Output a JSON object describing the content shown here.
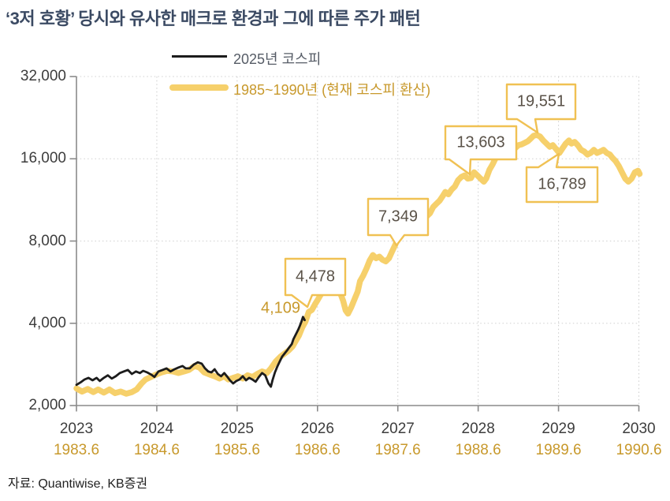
{
  "title": "‘3저 호황’ 당시와 유사한 매크로 환경과 그에 따른 주가 패턴",
  "source": "자료: Quantiwise, KB증권",
  "legend": [
    {
      "label": "2025년 코스피",
      "color": "#1C1C1C"
    },
    {
      "label": "1985~1990년 (현재 코스피 환산)",
      "color": "#F6D06B"
    }
  ],
  "colors": {
    "title": "#3B4A63",
    "black_line": "#1C1C1C",
    "gold_line": "#F6D06B",
    "callout_border": "#F0C153",
    "gold_text": "#C8992C",
    "axis_text": "#3D3D3D",
    "axis_line": "#8A8A8A",
    "gridline": "#D0D0D0"
  },
  "chart_data": {
    "type": "line",
    "title": "‘3저 호황’ 당시와 유사한 매크로 환경과 그에 따른 주가 패턴",
    "y_axis": {
      "scale": "log2",
      "range": [
        2000,
        32000
      ],
      "tick_values": [
        32000,
        16000,
        8000,
        4000,
        2000
      ],
      "tick_labels": [
        "32,000",
        "16,000",
        "8,000",
        "4,000",
        "2,000"
      ],
      "grid_values": [
        32000,
        16000,
        8000,
        4000
      ]
    },
    "x_axis_top": {
      "range": [
        2023,
        2030
      ],
      "tick_values": [
        2023,
        2024,
        2025,
        2026,
        2027,
        2028,
        2029,
        2030
      ],
      "tick_labels": [
        "2023",
        "2024",
        "2025",
        "2026",
        "2027",
        "2028",
        "2029",
        "2030"
      ]
    },
    "x_axis_bottom": {
      "range": [
        1983.6,
        1990.6
      ],
      "tick_labels": [
        "1983.6",
        "1984.6",
        "1985.6",
        "1986.6",
        "1987.6",
        "1988.6",
        "1989.6",
        "1990.6"
      ]
    },
    "grid": {
      "horizontal": true,
      "vertical": true,
      "style": "dotted"
    },
    "legend_position": "top-center",
    "series": [
      {
        "name": "1985~1990년 (현재 코스피 환산)",
        "color": "#F6D06B",
        "axis": "bottom",
        "points": [
          [
            1983.6,
            2310
          ],
          [
            1983.67,
            2250
          ],
          [
            1983.74,
            2300
          ],
          [
            1983.81,
            2240
          ],
          [
            1983.87,
            2290
          ],
          [
            1983.94,
            2230
          ],
          [
            1984.01,
            2290
          ],
          [
            1984.08,
            2220
          ],
          [
            1984.15,
            2250
          ],
          [
            1984.22,
            2210
          ],
          [
            1984.29,
            2240
          ],
          [
            1984.35,
            2290
          ],
          [
            1984.41,
            2410
          ],
          [
            1984.46,
            2490
          ],
          [
            1984.52,
            2540
          ],
          [
            1984.59,
            2595
          ],
          [
            1984.66,
            2645
          ],
          [
            1984.73,
            2680
          ],
          [
            1984.8,
            2665
          ],
          [
            1984.87,
            2630
          ],
          [
            1984.94,
            2665
          ],
          [
            1985.0,
            2700
          ],
          [
            1985.07,
            2790
          ],
          [
            1985.13,
            2755
          ],
          [
            1985.19,
            2645
          ],
          [
            1985.26,
            2595
          ],
          [
            1985.32,
            2560
          ],
          [
            1985.38,
            2510
          ],
          [
            1985.44,
            2560
          ],
          [
            1985.49,
            2490
          ],
          [
            1985.55,
            2525
          ],
          [
            1985.61,
            2560
          ],
          [
            1985.67,
            2510
          ],
          [
            1985.73,
            2580
          ],
          [
            1985.79,
            2545
          ],
          [
            1985.85,
            2610
          ],
          [
            1985.91,
            2665
          ],
          [
            1985.97,
            2630
          ],
          [
            1986.02,
            2735
          ],
          [
            1986.08,
            2900
          ],
          [
            1986.14,
            3020
          ],
          [
            1986.19,
            3100
          ],
          [
            1986.24,
            3180
          ],
          [
            1986.29,
            3290
          ],
          [
            1986.33,
            3450
          ],
          [
            1986.37,
            3610
          ],
          [
            1986.41,
            3860
          ],
          [
            1986.45,
            4055
          ],
          [
            1986.49,
            4400
          ],
          [
            1986.53,
            4478
          ],
          [
            1986.57,
            4700
          ],
          [
            1986.6,
            4860
          ],
          [
            1986.64,
            5090
          ],
          [
            1986.68,
            5300
          ],
          [
            1986.72,
            5370
          ],
          [
            1986.76,
            5225
          ],
          [
            1986.8,
            5300
          ],
          [
            1986.84,
            5370
          ],
          [
            1986.88,
            5190
          ],
          [
            1986.92,
            4830
          ],
          [
            1986.95,
            4460
          ],
          [
            1986.98,
            4340
          ],
          [
            1987.02,
            4580
          ],
          [
            1987.06,
            4895
          ],
          [
            1987.1,
            5225
          ],
          [
            1987.13,
            5710
          ],
          [
            1987.17,
            5985
          ],
          [
            1987.21,
            6350
          ],
          [
            1987.25,
            6790
          ],
          [
            1987.29,
            7105
          ],
          [
            1987.33,
            6920
          ],
          [
            1987.37,
            7015
          ],
          [
            1987.41,
            6830
          ],
          [
            1987.45,
            6740
          ],
          [
            1987.49,
            6920
          ],
          [
            1987.53,
            7349
          ],
          [
            1987.57,
            7780
          ],
          [
            1987.61,
            8420
          ],
          [
            1987.64,
            8990
          ],
          [
            1987.68,
            9230
          ],
          [
            1987.72,
            8990
          ],
          [
            1987.76,
            9230
          ],
          [
            1987.8,
            9600
          ],
          [
            1987.84,
            9980
          ],
          [
            1987.88,
            10250
          ],
          [
            1987.92,
            10110
          ],
          [
            1987.96,
            9850
          ],
          [
            1988.0,
            10110
          ],
          [
            1988.04,
            10660
          ],
          [
            1988.08,
            10950
          ],
          [
            1988.12,
            11240
          ],
          [
            1988.16,
            11700
          ],
          [
            1988.19,
            12100
          ],
          [
            1988.23,
            11860
          ],
          [
            1988.27,
            12340
          ],
          [
            1988.31,
            12670
          ],
          [
            1988.35,
            13360
          ],
          [
            1988.39,
            13720
          ],
          [
            1988.43,
            13910
          ],
          [
            1988.47,
            13540
          ],
          [
            1988.51,
            13603
          ],
          [
            1988.55,
            14280
          ],
          [
            1988.59,
            13910
          ],
          [
            1988.63,
            13540
          ],
          [
            1988.67,
            13190
          ],
          [
            1988.7,
            13540
          ],
          [
            1988.74,
            14570
          ],
          [
            1988.78,
            15275
          ],
          [
            1988.82,
            16140
          ],
          [
            1988.86,
            16580
          ],
          [
            1988.9,
            16360
          ],
          [
            1988.94,
            16800
          ],
          [
            1988.98,
            17250
          ],
          [
            1989.02,
            17710
          ],
          [
            1989.06,
            17480
          ],
          [
            1989.1,
            17950
          ],
          [
            1989.14,
            18070
          ],
          [
            1989.18,
            18310
          ],
          [
            1989.22,
            18560
          ],
          [
            1989.25,
            18930
          ],
          [
            1989.29,
            19440
          ],
          [
            1989.33,
            19551
          ],
          [
            1989.37,
            19310
          ],
          [
            1989.41,
            18680
          ],
          [
            1989.45,
            18190
          ],
          [
            1989.49,
            17710
          ],
          [
            1989.53,
            17950
          ],
          [
            1989.57,
            17360
          ],
          [
            1989.61,
            16789
          ],
          [
            1989.65,
            17480
          ],
          [
            1989.69,
            18190
          ],
          [
            1989.73,
            18680
          ],
          [
            1989.76,
            18190
          ],
          [
            1989.8,
            18435
          ],
          [
            1989.84,
            17950
          ],
          [
            1989.88,
            17250
          ],
          [
            1989.92,
            17020
          ],
          [
            1989.96,
            16580
          ],
          [
            1990.0,
            16800
          ],
          [
            1990.04,
            17250
          ],
          [
            1990.08,
            16800
          ],
          [
            1990.12,
            17020
          ],
          [
            1990.16,
            17250
          ],
          [
            1990.2,
            16800
          ],
          [
            1990.24,
            16580
          ],
          [
            1990.27,
            16140
          ],
          [
            1990.31,
            15700
          ],
          [
            1990.35,
            15070
          ],
          [
            1990.39,
            14280
          ],
          [
            1990.43,
            13540
          ],
          [
            1990.47,
            13190
          ],
          [
            1990.51,
            13540
          ],
          [
            1990.55,
            14280
          ],
          [
            1990.59,
            14470
          ],
          [
            1990.61,
            14090
          ]
        ]
      },
      {
        "name": "2025년 코스피",
        "color": "#1C1C1C",
        "axis": "top",
        "points": [
          [
            2023.0,
            2380
          ],
          [
            2023.05,
            2430
          ],
          [
            2023.1,
            2490
          ],
          [
            2023.15,
            2525
          ],
          [
            2023.2,
            2475
          ],
          [
            2023.25,
            2525
          ],
          [
            2023.29,
            2460
          ],
          [
            2023.34,
            2525
          ],
          [
            2023.39,
            2580
          ],
          [
            2023.44,
            2510
          ],
          [
            2023.49,
            2560
          ],
          [
            2023.54,
            2630
          ],
          [
            2023.59,
            2665
          ],
          [
            2023.64,
            2700
          ],
          [
            2023.69,
            2610
          ],
          [
            2023.74,
            2665
          ],
          [
            2023.79,
            2630
          ],
          [
            2023.83,
            2680
          ],
          [
            2023.88,
            2645
          ],
          [
            2023.93,
            2595
          ],
          [
            2023.97,
            2545
          ],
          [
            2024.02,
            2665
          ],
          [
            2024.07,
            2700
          ],
          [
            2024.12,
            2735
          ],
          [
            2024.17,
            2665
          ],
          [
            2024.22,
            2715
          ],
          [
            2024.27,
            2755
          ],
          [
            2024.32,
            2790
          ],
          [
            2024.36,
            2735
          ],
          [
            2024.41,
            2735
          ],
          [
            2024.46,
            2825
          ],
          [
            2024.51,
            2880
          ],
          [
            2024.56,
            2845
          ],
          [
            2024.6,
            2735
          ],
          [
            2024.64,
            2665
          ],
          [
            2024.68,
            2645
          ],
          [
            2024.72,
            2715
          ],
          [
            2024.76,
            2610
          ],
          [
            2024.8,
            2560
          ],
          [
            2024.84,
            2630
          ],
          [
            2024.88,
            2545
          ],
          [
            2024.91,
            2475
          ],
          [
            2024.95,
            2410
          ],
          [
            2024.99,
            2460
          ],
          [
            2025.03,
            2490
          ],
          [
            2025.07,
            2560
          ],
          [
            2025.11,
            2475
          ],
          [
            2025.15,
            2525
          ],
          [
            2025.19,
            2490
          ],
          [
            2025.23,
            2445
          ],
          [
            2025.27,
            2545
          ],
          [
            2025.31,
            2630
          ],
          [
            2025.35,
            2580
          ],
          [
            2025.39,
            2410
          ],
          [
            2025.42,
            2345
          ],
          [
            2025.44,
            2475
          ],
          [
            2025.47,
            2645
          ],
          [
            2025.5,
            2775
          ],
          [
            2025.53,
            2900
          ],
          [
            2025.56,
            3020
          ],
          [
            2025.59,
            3100
          ],
          [
            2025.62,
            3180
          ],
          [
            2025.65,
            3270
          ],
          [
            2025.68,
            3360
          ],
          [
            2025.7,
            3495
          ],
          [
            2025.72,
            3590
          ],
          [
            2025.74,
            3690
          ],
          [
            2025.76,
            3790
          ],
          [
            2025.78,
            3915
          ],
          [
            2025.8,
            4055
          ],
          [
            2025.82,
            4220
          ],
          [
            2025.84,
            4109
          ]
        ]
      }
    ],
    "annotations": {
      "callouts": [
        {
          "label": "4,478",
          "value": 4478,
          "series": "1985~1990년 (현재 코스피 환산)"
        },
        {
          "label": "7,349",
          "value": 7349,
          "series": "1985~1990년 (현재 코스피 환산)"
        },
        {
          "label": "13,603",
          "value": 13603,
          "series": "1985~1990년 (현재 코스피 환산)"
        },
        {
          "label": "19,551",
          "value": 19551,
          "series": "1985~1990년 (현재 코스피 환산)"
        },
        {
          "label": "16,789",
          "value": 16789,
          "series": "1985~1990년 (현재 코스피 환산)"
        }
      ],
      "inline_label": {
        "label": "4,109",
        "value": 4109,
        "series": "2025년 코스피"
      }
    }
  }
}
